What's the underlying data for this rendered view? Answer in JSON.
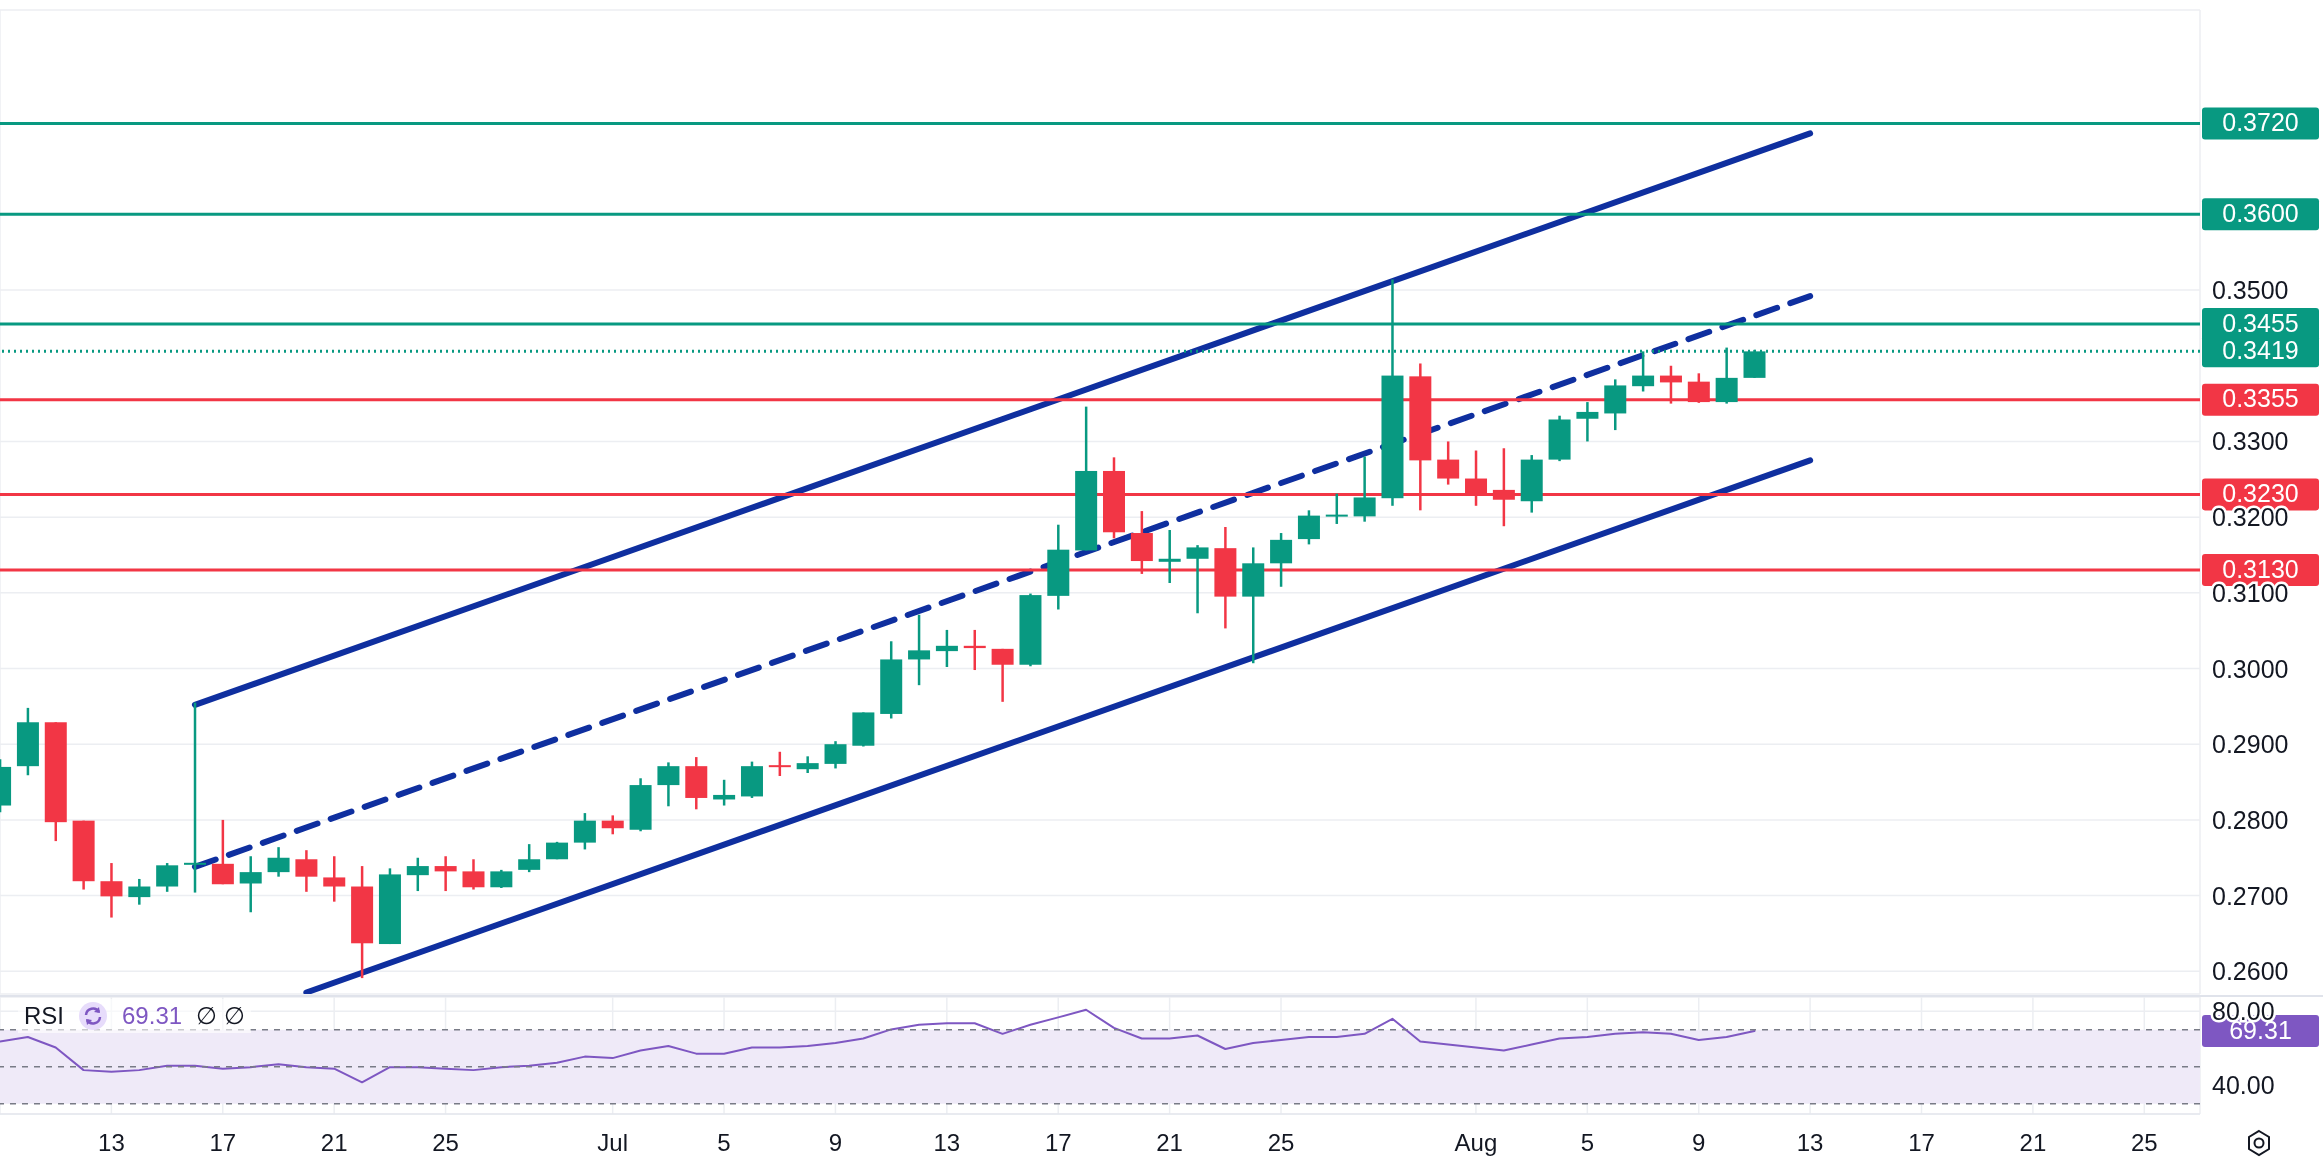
{
  "chart_data": [
    {
      "type": "candlestick",
      "x": [
        "--06-09",
        "--06-10",
        "--06-11",
        "--06-12",
        "--06-13",
        "--06-14",
        "--06-15",
        "--06-16",
        "--06-17",
        "--06-18",
        "--06-19",
        "--06-20",
        "--06-21",
        "--06-22",
        "--06-23",
        "--06-24",
        "--06-25",
        "--06-26",
        "--06-27",
        "--06-28",
        "--06-29",
        "--06-30",
        "--07-01",
        "--07-02",
        "--07-03",
        "--07-04",
        "--07-05",
        "--07-06",
        "--07-07",
        "--07-08",
        "--07-09",
        "--07-10",
        "--07-11",
        "--07-12",
        "--07-13",
        "--07-14",
        "--07-15",
        "--07-16",
        "--07-17",
        "--07-18",
        "--07-19",
        "--07-20",
        "--07-21",
        "--07-22",
        "--07-23",
        "--07-24",
        "--07-25",
        "--07-26",
        "--07-27",
        "--07-28",
        "--07-29",
        "--07-30",
        "--07-31",
        "--08-01",
        "--08-02",
        "--08-03",
        "--08-04",
        "--08-05",
        "--08-06",
        "--08-07",
        "--08-08",
        "--08-09",
        "--08-10",
        "--08-11"
      ],
      "ohlc": [
        [
          0.2819,
          0.288,
          0.281,
          0.287
        ],
        [
          0.2871,
          0.2948,
          0.2859,
          0.2929
        ],
        [
          0.2929,
          0.2929,
          0.2772,
          0.2797
        ],
        [
          0.2799,
          0.2799,
          0.2708,
          0.2719
        ],
        [
          0.2719,
          0.2743,
          0.2671,
          0.2699
        ],
        [
          0.2698,
          0.2722,
          0.2688,
          0.2712
        ],
        [
          0.2712,
          0.2743,
          0.2705,
          0.274
        ],
        [
          0.274,
          0.2955,
          0.2704,
          0.2742
        ],
        [
          0.2742,
          0.28,
          0.2715,
          0.2715
        ],
        [
          0.2716,
          0.2752,
          0.2678,
          0.2731
        ],
        [
          0.2731,
          0.2764,
          0.2725,
          0.275
        ],
        [
          0.2748,
          0.276,
          0.2705,
          0.2725
        ],
        [
          0.2724,
          0.2752,
          0.2692,
          0.2712
        ],
        [
          0.2712,
          0.2739,
          0.2591,
          0.2637
        ],
        [
          0.2636,
          0.2736,
          0.2636,
          0.2728
        ],
        [
          0.2727,
          0.275,
          0.2706,
          0.2739
        ],
        [
          0.2739,
          0.2752,
          0.2706,
          0.2732
        ],
        [
          0.2732,
          0.2748,
          0.2708,
          0.2711
        ],
        [
          0.2711,
          0.2734,
          0.271,
          0.2732
        ],
        [
          0.2734,
          0.2768,
          0.2731,
          0.2748
        ],
        [
          0.2748,
          0.2771,
          0.2748,
          0.277
        ],
        [
          0.277,
          0.2809,
          0.2761,
          0.2799
        ],
        [
          0.2799,
          0.2806,
          0.2781,
          0.2789
        ],
        [
          0.2787,
          0.2855,
          0.2785,
          0.2846
        ],
        [
          0.2846,
          0.2876,
          0.2818,
          0.2871
        ],
        [
          0.2871,
          0.2883,
          0.2814,
          0.2829
        ],
        [
          0.2827,
          0.2853,
          0.2819,
          0.2833
        ],
        [
          0.2831,
          0.2877,
          0.2829,
          0.2871
        ],
        [
          0.2871,
          0.289,
          0.2858,
          0.2869
        ],
        [
          0.2867,
          0.2884,
          0.2862,
          0.2875
        ],
        [
          0.2874,
          0.2904,
          0.2868,
          0.29
        ],
        [
          0.2898,
          0.2942,
          0.2897,
          0.2942
        ],
        [
          0.294,
          0.3036,
          0.2934,
          0.3012
        ],
        [
          0.3012,
          0.3071,
          0.2978,
          0.3024
        ],
        [
          0.3023,
          0.3051,
          0.3002,
          0.303
        ],
        [
          0.303,
          0.3051,
          0.2998,
          0.3027
        ],
        [
          0.3026,
          0.3026,
          0.2956,
          0.3005
        ],
        [
          0.3005,
          0.3099,
          0.3003,
          0.3097
        ],
        [
          0.3096,
          0.319,
          0.3078,
          0.3157
        ],
        [
          0.3156,
          0.3346,
          0.3156,
          0.3261
        ],
        [
          0.3261,
          0.3279,
          0.3172,
          0.318
        ],
        [
          0.3179,
          0.3208,
          0.3125,
          0.3142
        ],
        [
          0.3141,
          0.3183,
          0.3113,
          0.3145
        ],
        [
          0.3145,
          0.3163,
          0.3073,
          0.316
        ],
        [
          0.3159,
          0.3187,
          0.3053,
          0.3095
        ],
        [
          0.3095,
          0.316,
          0.3007,
          0.3139
        ],
        [
          0.3139,
          0.3179,
          0.3108,
          0.317
        ],
        [
          0.3171,
          0.3209,
          0.3164,
          0.3202
        ],
        [
          0.32,
          0.3231,
          0.3191,
          0.3202
        ],
        [
          0.3201,
          0.328,
          0.3194,
          0.3226
        ],
        [
          0.3225,
          0.3514,
          0.3215,
          0.3387
        ],
        [
          0.3386,
          0.3403,
          0.3209,
          0.3275
        ],
        [
          0.3276,
          0.33,
          0.3243,
          0.3251
        ],
        [
          0.3251,
          0.3288,
          0.3215,
          0.3231
        ],
        [
          0.3236,
          0.3291,
          0.3188,
          0.3223
        ],
        [
          0.3221,
          0.3282,
          0.3206,
          0.3276
        ],
        [
          0.3276,
          0.3334,
          0.3274,
          0.3329
        ],
        [
          0.333,
          0.3352,
          0.33,
          0.3339
        ],
        [
          0.3337,
          0.3382,
          0.3315,
          0.3374
        ],
        [
          0.3373,
          0.3419,
          0.3366,
          0.3387
        ],
        [
          0.3387,
          0.34,
          0.335,
          0.3378
        ],
        [
          0.3379,
          0.339,
          0.3351,
          0.3352
        ],
        [
          0.3352,
          0.3424,
          0.335,
          0.3384
        ],
        [
          0.3384,
          0.3421,
          0.3384,
          0.3419
        ]
      ],
      "colors": [
        "#089981",
        "#089981",
        "#f23645",
        "#f23645",
        "#f23645",
        "#089981",
        "#089981",
        "#089981",
        "#f23645",
        "#089981",
        "#089981",
        "#f23645",
        "#f23645",
        "#f23645",
        "#089981",
        "#089981",
        "#f23645",
        "#f23645",
        "#089981",
        "#089981",
        "#089981",
        "#089981",
        "#f23645",
        "#089981",
        "#089981",
        "#f23645",
        "#089981",
        "#089981",
        "#f23645",
        "#089981",
        "#089981",
        "#089981",
        "#089981",
        "#089981",
        "#089981",
        "#f23645",
        "#f23645",
        "#089981",
        "#089981",
        "#089981",
        "#f23645",
        "#f23645",
        "#089981",
        "#089981",
        "#f23645",
        "#089981",
        "#089981",
        "#089981",
        "#089981",
        "#089981",
        "#089981",
        "#f23645",
        "#f23645",
        "#f23645",
        "#f23645",
        "#089981",
        "#089981",
        "#089981",
        "#089981",
        "#089981",
        "#f23645",
        "#f23645",
        "#089981",
        "#089981"
      ],
      "series": [
        {
          "type": "line",
          "x": [
            "--06-16",
            "--08-13"
          ],
          "values": [
            0.2952,
            0.3707
          ],
          "color": "#0f2f9f",
          "line_style": "solid"
        },
        {
          "type": "line",
          "x": [
            "--06-16",
            "--08-13"
          ],
          "values": [
            0.2738,
            0.3492
          ],
          "color": "#0f2f9f",
          "line_style": "dashed"
        },
        {
          "type": "line",
          "x": [
            "--06-20",
            "--08-13"
          ],
          "values": [
            0.2572,
            0.3275
          ],
          "color": "#0f2f9f",
          "line_style": "solid"
        }
      ],
      "ref_lines": [
        {
          "axis": "y",
          "value": 0.372,
          "label": "0.3720",
          "color": "#089981",
          "line_style": "solid"
        },
        {
          "axis": "y",
          "value": 0.36,
          "label": "0.3600",
          "color": "#089981",
          "line_style": "solid"
        },
        {
          "axis": "y",
          "value": 0.3455,
          "label": "0.3455",
          "color": "#089981",
          "line_style": "solid"
        },
        {
          "axis": "y",
          "value": 0.3419,
          "label": "0.3419",
          "color": "#089981",
          "line_style": "dotted"
        },
        {
          "axis": "y",
          "value": 0.3355,
          "label": "0.3355",
          "color": "#f23645",
          "line_style": "solid"
        },
        {
          "axis": "y",
          "value": 0.323,
          "label": "0.3230",
          "color": "#f23645",
          "line_style": "solid"
        },
        {
          "axis": "y",
          "value": 0.313,
          "label": "0.3130",
          "color": "#f23645",
          "line_style": "solid"
        }
      ],
      "xlim": [
        "--06-09",
        "--08-27"
      ],
      "xticks": [
        {
          "value": "--06-13",
          "label": "13"
        },
        {
          "value": "--06-17",
          "label": "17"
        },
        {
          "value": "--06-21",
          "label": "21"
        },
        {
          "value": "--06-25",
          "label": "25"
        },
        {
          "value": "--07-01",
          "label": "Jul"
        },
        {
          "value": "--07-05",
          "label": "5"
        },
        {
          "value": "--07-09",
          "label": "9"
        },
        {
          "value": "--07-13",
          "label": "13"
        },
        {
          "value": "--07-17",
          "label": "17"
        },
        {
          "value": "--07-21",
          "label": "21"
        },
        {
          "value": "--07-25",
          "label": "25"
        },
        {
          "value": "--08-01",
          "label": "Aug"
        },
        {
          "value": "--08-05",
          "label": "5"
        },
        {
          "value": "--08-09",
          "label": "9"
        },
        {
          "value": "--08-13",
          "label": "13"
        },
        {
          "value": "--08-17",
          "label": "17"
        },
        {
          "value": "--08-21",
          "label": "21"
        },
        {
          "value": "--08-25",
          "label": "25"
        }
      ],
      "ylim": [
        0.257,
        0.387
      ],
      "yticks": [
        {
          "value": 0.26,
          "label": "0.2600"
        },
        {
          "value": 0.27,
          "label": "0.2700"
        },
        {
          "value": 0.28,
          "label": "0.2800"
        },
        {
          "value": 0.29,
          "label": "0.2900"
        },
        {
          "value": 0.3,
          "label": "0.3000"
        },
        {
          "value": 0.31,
          "label": "0.3100"
        },
        {
          "value": 0.32,
          "label": "0.3200"
        },
        {
          "value": 0.33,
          "label": "0.3300"
        },
        {
          "value": 0.35,
          "label": "0.3500"
        }
      ],
      "tick_labels": "y",
      "grid": true
    },
    {
      "type": "line",
      "title": "RSI",
      "annotations": [
        "69.31",
        "∅ ∅"
      ],
      "x": [
        "--06-09",
        "--06-10",
        "--06-11",
        "--06-12",
        "--06-13",
        "--06-14",
        "--06-15",
        "--06-16",
        "--06-17",
        "--06-18",
        "--06-19",
        "--06-20",
        "--06-21",
        "--06-22",
        "--06-23",
        "--06-24",
        "--06-25",
        "--06-26",
        "--06-27",
        "--06-28",
        "--06-29",
        "--06-30",
        "--07-01",
        "--07-02",
        "--07-03",
        "--07-04",
        "--07-05",
        "--07-06",
        "--07-07",
        "--07-08",
        "--07-09",
        "--07-10",
        "--07-11",
        "--07-12",
        "--07-13",
        "--07-14",
        "--07-15",
        "--07-16",
        "--07-17",
        "--07-18",
        "--07-19",
        "--07-20",
        "--07-21",
        "--07-22",
        "--07-23",
        "--07-24",
        "--07-25",
        "--07-26",
        "--07-27",
        "--07-28",
        "--07-29",
        "--07-30",
        "--07-31",
        "--08-01",
        "--08-02",
        "--08-03",
        "--08-04",
        "--08-05",
        "--08-06",
        "--08-07",
        "--08-08",
        "--08-09",
        "--08-10",
        "--08-11"
      ],
      "series": [
        {
          "color": "#7e57c2",
          "values": [
            63.7,
            66.1,
            60.4,
            48.2,
            47.3,
            48.2,
            50.6,
            50.6,
            49.0,
            49.8,
            51.4,
            49.8,
            49.0,
            41.6,
            49.8,
            49.8,
            49.0,
            48.2,
            49.8,
            50.6,
            52.2,
            55.5,
            54.7,
            58.8,
            61.2,
            57.1,
            57.1,
            60.4,
            60.4,
            61.2,
            62.9,
            65.3,
            70.2,
            72.7,
            73.5,
            73.5,
            67.8,
            72.7,
            76.7,
            80.8,
            71.0,
            65.3,
            65.3,
            66.9,
            59.6,
            62.9,
            64.5,
            66.1,
            66.1,
            67.8,
            75.9,
            63.7,
            62.0,
            60.4,
            58.8,
            62.0,
            65.3,
            66.1,
            67.8,
            68.6,
            67.8,
            64.5,
            66.1,
            69.31
          ]
        }
      ],
      "ref_lines": [
        {
          "axis": "y",
          "value": 70,
          "color": "#787b86",
          "line_style": "dashed"
        },
        {
          "axis": "y",
          "value": 50,
          "color": "#787b86",
          "line_style": "dashed"
        },
        {
          "axis": "y",
          "value": 30,
          "color": "#787b86",
          "line_style": "dashed"
        }
      ],
      "bands": [
        {
          "axis": "y",
          "from": 30,
          "to": 70,
          "color": "#efeaf8"
        }
      ],
      "xlim": [
        "--06-09",
        "--08-27"
      ],
      "xticks": [
        {
          "value": "--06-13",
          "label": "13"
        },
        {
          "value": "--06-17",
          "label": "17"
        },
        {
          "value": "--06-21",
          "label": "21"
        },
        {
          "value": "--06-25",
          "label": "25"
        },
        {
          "value": "--07-01",
          "label": "Jul"
        },
        {
          "value": "--07-05",
          "label": "5"
        },
        {
          "value": "--07-09",
          "label": "9"
        },
        {
          "value": "--07-13",
          "label": "13"
        },
        {
          "value": "--07-17",
          "label": "17"
        },
        {
          "value": "--07-21",
          "label": "21"
        },
        {
          "value": "--07-25",
          "label": "25"
        },
        {
          "value": "--08-01",
          "label": "Aug"
        },
        {
          "value": "--08-05",
          "label": "5"
        },
        {
          "value": "--08-09",
          "label": "9"
        },
        {
          "value": "--08-13",
          "label": "13"
        },
        {
          "value": "--08-17",
          "label": "17"
        },
        {
          "value": "--08-21",
          "label": "21"
        },
        {
          "value": "--08-25",
          "label": "25"
        }
      ],
      "ylim": [
        24.5,
        87.7
      ],
      "yticks": [
        {
          "value": 40,
          "label": "40.00"
        },
        {
          "value": 80,
          "label": "80.00"
        }
      ],
      "grid": true
    }
  ]
}
